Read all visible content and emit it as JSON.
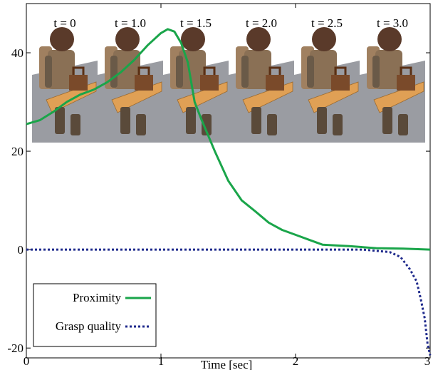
{
  "snapshots": [
    {
      "label": "t = 0"
    },
    {
      "label": "t = 1.0"
    },
    {
      "label": "t = 1.5"
    },
    {
      "label": "t = 2.0"
    },
    {
      "label": "t = 2.5"
    },
    {
      "label": "t = 3.0"
    }
  ],
  "colors": {
    "proximity": "#1aa54a",
    "grasp_quality": "#1f2a8c",
    "floor": "#9a9ca2",
    "table": "#e0a055",
    "robot_body": "#a08060",
    "robot_head": "#5a3a2a"
  },
  "chart_data": {
    "type": "line",
    "title": "",
    "xlabel": "Time [sec]",
    "ylabel": "",
    "xlim": [
      0,
      3
    ],
    "ylim": [
      -22,
      50
    ],
    "xticks": [
      0,
      1,
      2,
      3
    ],
    "yticks": [
      -20,
      0,
      20,
      40
    ],
    "grid": false,
    "legend_position": "bottom-left",
    "series": [
      {
        "name": "Proximity",
        "style": "solid",
        "x": [
          0,
          0.1,
          0.2,
          0.3,
          0.4,
          0.5,
          0.6,
          0.7,
          0.8,
          0.9,
          1.0,
          1.05,
          1.1,
          1.15,
          1.2,
          1.25,
          1.3,
          1.4,
          1.5,
          1.6,
          1.7,
          1.8,
          1.9,
          2.0,
          2.1,
          2.2,
          2.4,
          2.5,
          2.6,
          2.8,
          3.0
        ],
        "y": [
          25.5,
          26.3,
          28,
          30,
          31.5,
          32.5,
          34,
          36,
          38.5,
          41.5,
          44,
          44.8,
          44.3,
          42,
          38,
          30,
          26.5,
          20,
          14,
          10,
          7.8,
          5.5,
          4,
          3,
          2,
          1,
          0.7,
          0.5,
          0.3,
          0.2,
          0
        ]
      },
      {
        "name": "Grasp quality",
        "style": "dotted",
        "x": [
          0,
          0.5,
          1.0,
          1.5,
          2.0,
          2.5,
          2.7,
          2.78,
          2.85,
          2.9,
          2.93,
          2.96,
          2.98,
          3.0
        ],
        "y": [
          0,
          0,
          0,
          0,
          0,
          0,
          -0.5,
          -1.5,
          -4,
          -6.5,
          -10,
          -14,
          -19,
          -21.5
        ]
      }
    ]
  }
}
